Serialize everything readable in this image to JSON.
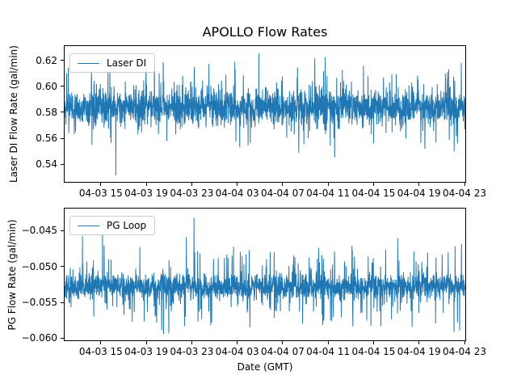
{
  "figure": {
    "title": "APOLLO Flow Rates",
    "xlabel": "Date (GMT)",
    "background_color": "#ffffff",
    "line_color": "#1f77b4"
  },
  "chart_data": [
    {
      "type": "line",
      "title": "APOLLO Flow Rates",
      "ylabel": "Laser DI Flow Rate (gal/min)",
      "xlabel": "",
      "legend": {
        "position": "upper left",
        "entries": [
          "Laser DI"
        ]
      },
      "grid": false,
      "ylim": [
        0.5265,
        0.631
      ],
      "y_ticks": {
        "values": [
          0.54,
          0.56,
          0.58,
          0.6,
          0.62
        ],
        "labels": [
          "0.54",
          "0.56",
          "0.58",
          "0.60",
          "0.62"
        ]
      },
      "x_ticks": {
        "fracs": [
          0.0904,
          0.2038,
          0.3173,
          0.4307,
          0.5442,
          0.6576,
          0.7711,
          0.8845,
          0.998
        ],
        "labels": [
          "04-03 15",
          "04-03 19",
          "04-03 23",
          "04-04 03",
          "04-04 07",
          "04-04 11",
          "04-04 15",
          "04-04 19",
          "04-04 23"
        ]
      },
      "series": [
        {
          "name": "Laser DI",
          "color": "#1f77b4",
          "n_points": 2200,
          "mean": 0.584,
          "std": 0.0065,
          "spike_prob": 0.08,
          "spike_min": 0.005,
          "spike_max": 0.03,
          "clip_min": 0.5315,
          "clip_max": 0.6255,
          "seed": 42,
          "anomalies": [
            {
              "frac": 0.128,
              "value": 0.5315
            }
          ],
          "observed_min": 0.531,
          "observed_max": 0.625
        }
      ]
    },
    {
      "type": "line",
      "title": "",
      "ylabel": "PG Flow Rate (gal/min)",
      "xlabel": "Date (GMT)",
      "legend": {
        "position": "upper left",
        "entries": [
          "PG Loop"
        ]
      },
      "grid": false,
      "ylim": [
        -0.0603,
        -0.0419
      ],
      "y_ticks": {
        "values": [
          -0.045,
          -0.05,
          -0.055,
          -0.06
        ],
        "labels": [
          "−0.045",
          "−0.050",
          "−0.055",
          "−0.060"
        ]
      },
      "x_ticks": {
        "fracs": [
          0.0904,
          0.2038,
          0.3173,
          0.4307,
          0.5442,
          0.6576,
          0.7711,
          0.8845,
          0.998
        ],
        "labels": [
          "04-03 15",
          "04-03 19",
          "04-03 23",
          "04-04 03",
          "04-04 07",
          "04-04 11",
          "04-04 15",
          "04-04 19",
          "04-04 23"
        ]
      },
      "series": [
        {
          "name": "PG Loop",
          "color": "#1f77b4",
          "n_points": 2200,
          "mean": -0.0528,
          "std": 0.0009,
          "spike_prob": 0.1,
          "spike_min": 0.001,
          "spike_max": 0.0055,
          "clip_min": -0.06,
          "clip_max": -0.0435,
          "seed": 7,
          "anomalies": [
            {
              "frac": 0.323,
              "value": -0.0432
            }
          ],
          "observed_min": -0.06,
          "observed_max": -0.043
        }
      ]
    }
  ]
}
